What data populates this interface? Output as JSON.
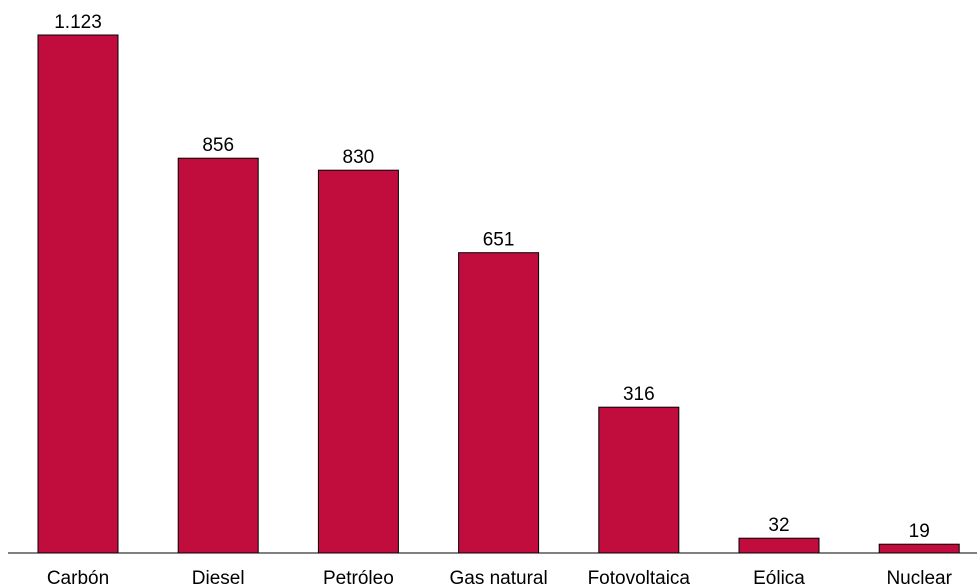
{
  "chart_data": {
    "type": "bar",
    "title": "",
    "xlabel": "",
    "ylabel": "",
    "categories": [
      "Carbón",
      "Diesel",
      "Petróleo",
      "Gas natural",
      "Fotovoltaica",
      "Eólica",
      "Nuclear"
    ],
    "values": [
      1123,
      856,
      830,
      651,
      316,
      32,
      19
    ],
    "data_labels": [
      "1.123",
      "856",
      "830",
      "651",
      "316",
      "32",
      "19"
    ],
    "ylim": [
      0,
      1123
    ],
    "grid": false,
    "legend": "none",
    "bar_color": "#C00D3E",
    "axis_color": "#000000"
  }
}
